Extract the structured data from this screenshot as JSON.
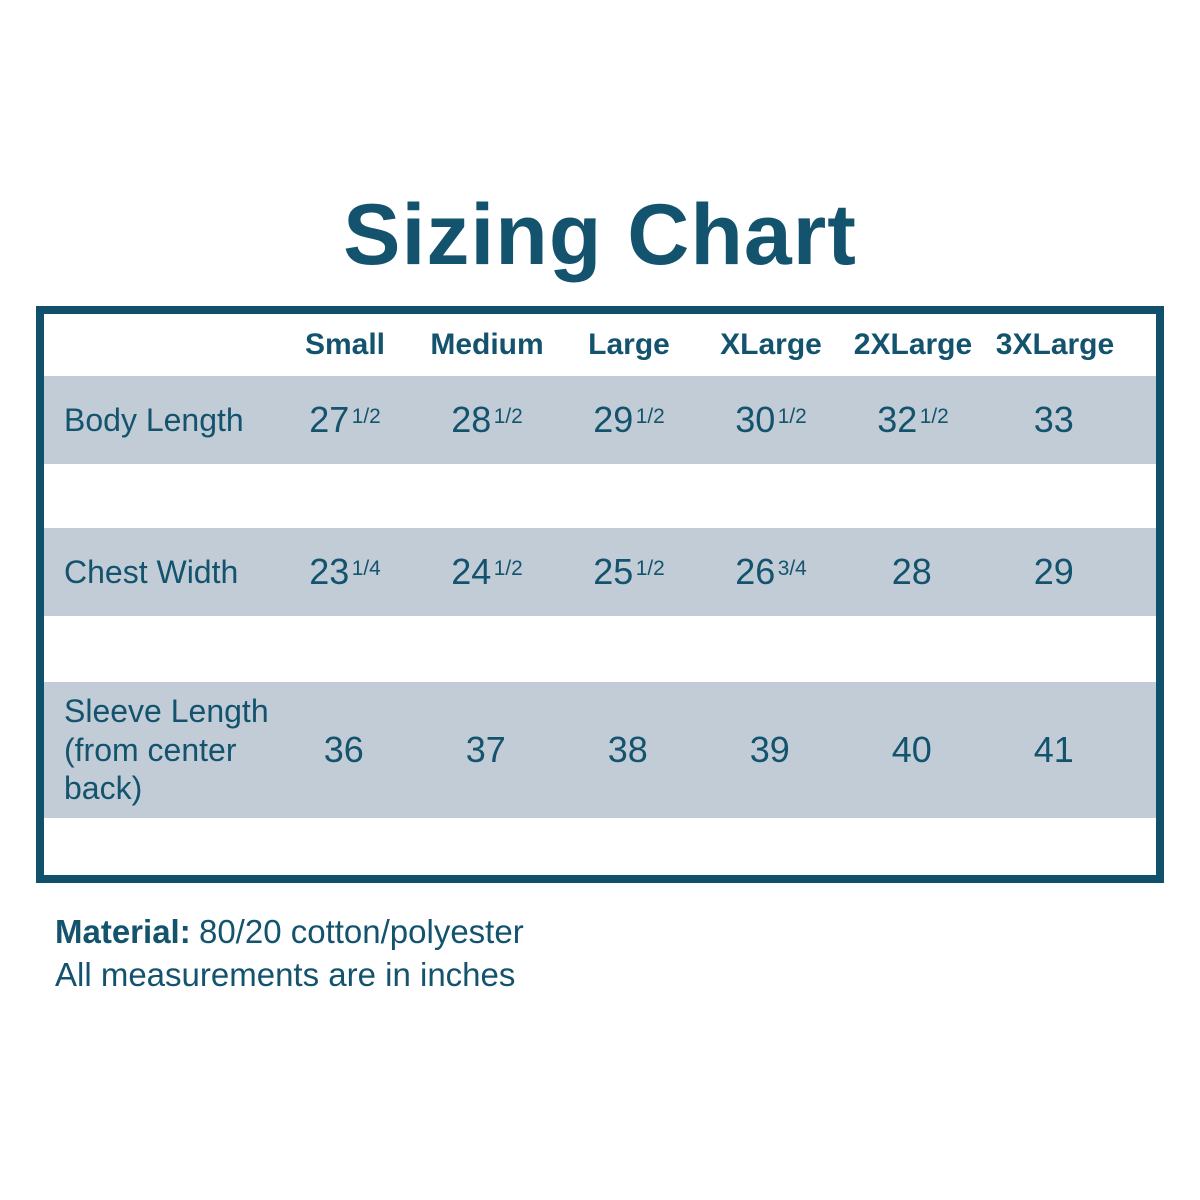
{
  "title": "Sizing Chart",
  "colors": {
    "teal_text": "#14536e",
    "table_border": "#11506b",
    "row_background": "#c1ccd6",
    "page_background": "#ffffff"
  },
  "table": {
    "columns": [
      "Small",
      "Medium",
      "Large",
      "XLarge",
      "2XLarge",
      "3XLarge"
    ],
    "rows": [
      {
        "label": "Body Length",
        "values": [
          {
            "whole": "27",
            "frac": "1/2"
          },
          {
            "whole": "28",
            "frac": "1/2"
          },
          {
            "whole": "29",
            "frac": "1/2"
          },
          {
            "whole": "30",
            "frac": "1/2"
          },
          {
            "whole": "32",
            "frac": "1/2"
          },
          {
            "whole": "33",
            "frac": ""
          }
        ]
      },
      {
        "label": "Chest Width",
        "values": [
          {
            "whole": "23",
            "frac": "1/4"
          },
          {
            "whole": "24",
            "frac": "1/2"
          },
          {
            "whole": "25",
            "frac": "1/2"
          },
          {
            "whole": "26",
            "frac": "3/4"
          },
          {
            "whole": "28",
            "frac": ""
          },
          {
            "whole": "29",
            "frac": ""
          }
        ]
      },
      {
        "label": "Sleeve Length (from center back)",
        "values": [
          {
            "whole": "36",
            "frac": ""
          },
          {
            "whole": "37",
            "frac": ""
          },
          {
            "whole": "38",
            "frac": ""
          },
          {
            "whole": "39",
            "frac": ""
          },
          {
            "whole": "40",
            "frac": ""
          },
          {
            "whole": "41",
            "frac": ""
          }
        ]
      }
    ]
  },
  "footer": {
    "material_label": "Material:",
    "material_value": "80/20 cotton/polyester",
    "note": "All measurements are in inches"
  },
  "chart_data": {
    "type": "table",
    "title": "Sizing Chart",
    "columns": [
      "",
      "Small",
      "Medium",
      "Large",
      "XLarge",
      "2XLarge",
      "3XLarge"
    ],
    "rows": [
      [
        "Body Length",
        "27 1/2",
        "28 1/2",
        "29 1/2",
        "30 1/2",
        "32 1/2",
        "33"
      ],
      [
        "Chest Width",
        "23 1/4",
        "24 1/2",
        "25 1/2",
        "26 3/4",
        "28",
        "29"
      ],
      [
        "Sleeve Length (from center back)",
        "36",
        "37",
        "38",
        "39",
        "40",
        "41"
      ]
    ],
    "notes": [
      "Material: 80/20 cotton/polyester",
      "All measurements are in inches"
    ]
  }
}
